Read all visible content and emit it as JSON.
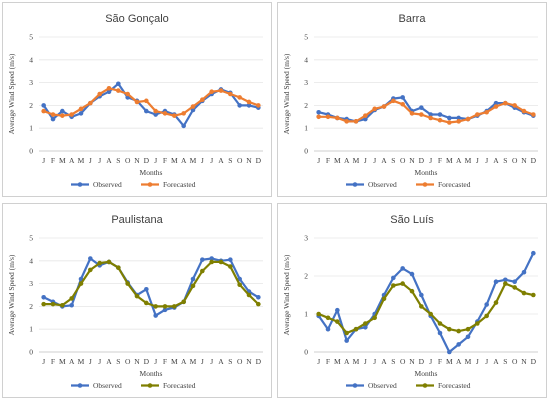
{
  "chart_data": [
    {
      "type": "line",
      "title": "São Gonçalo",
      "xlabel": "Months",
      "ylabel": "Average Wind Speed (m/s)",
      "ylim": [
        0,
        5
      ],
      "yticks": [
        "0",
        "1",
        "2",
        "3",
        "4",
        "5"
      ],
      "categories": [
        "J",
        "F",
        "M",
        "A",
        "M",
        "J",
        "J",
        "A",
        "S",
        "O",
        "N",
        "D",
        "J",
        "F",
        "M",
        "A",
        "M",
        "J",
        "J",
        "A",
        "S",
        "O",
        "N",
        "D"
      ],
      "legend_position": "bottom",
      "series": [
        {
          "name": "Observed",
          "color": "#4472c4",
          "values": [
            2.0,
            1.4,
            1.75,
            1.5,
            1.65,
            2.1,
            2.4,
            2.6,
            2.95,
            2.35,
            2.2,
            1.75,
            1.6,
            1.75,
            1.6,
            1.1,
            1.8,
            2.2,
            2.5,
            2.7,
            2.55,
            2.0,
            2.0,
            1.9
          ]
        },
        {
          "name": "Forecasted",
          "color": "#ed7d31",
          "values": [
            1.75,
            1.6,
            1.55,
            1.6,
            1.85,
            2.1,
            2.5,
            2.75,
            2.65,
            2.5,
            2.15,
            2.2,
            1.75,
            1.65,
            1.55,
            1.65,
            1.95,
            2.25,
            2.6,
            2.65,
            2.5,
            2.35,
            2.15,
            2.0
          ]
        }
      ]
    },
    {
      "type": "line",
      "title": "Barra",
      "xlabel": "Months",
      "ylabel": "Average Wind Speed (m/s)",
      "ylim": [
        0,
        5
      ],
      "yticks": [
        "0",
        "1",
        "2",
        "3",
        "4",
        "5"
      ],
      "categories": [
        "J",
        "F",
        "M",
        "A",
        "M",
        "J",
        "J",
        "A",
        "S",
        "O",
        "N",
        "D",
        "J",
        "F",
        "M",
        "A",
        "M",
        "J",
        "J",
        "A",
        "S",
        "O",
        "N",
        "D"
      ],
      "legend_position": "bottom",
      "series": [
        {
          "name": "Observed",
          "color": "#4472c4",
          "values": [
            1.7,
            1.6,
            1.45,
            1.4,
            1.3,
            1.4,
            1.8,
            1.95,
            2.3,
            2.35,
            1.75,
            1.9,
            1.6,
            1.6,
            1.45,
            1.45,
            1.4,
            1.55,
            1.75,
            2.1,
            2.1,
            1.9,
            1.7,
            1.55
          ]
        },
        {
          "name": "Forecasted",
          "color": "#ed7d31",
          "values": [
            1.5,
            1.5,
            1.45,
            1.3,
            1.3,
            1.55,
            1.85,
            1.95,
            2.2,
            2.05,
            1.65,
            1.6,
            1.45,
            1.35,
            1.25,
            1.3,
            1.4,
            1.6,
            1.7,
            1.95,
            2.1,
            2.0,
            1.75,
            1.6
          ]
        }
      ]
    },
    {
      "type": "line",
      "title": "Paulistana",
      "xlabel": "Months",
      "ylabel": "Average Wind Speed (m/s)",
      "ylim": [
        0,
        5
      ],
      "yticks": [
        "0",
        "1",
        "2",
        "3",
        "4",
        "5"
      ],
      "categories": [
        "J",
        "F",
        "M",
        "A",
        "M",
        "J",
        "J",
        "A",
        "S",
        "O",
        "N",
        "D",
        "J",
        "F",
        "M",
        "A",
        "M",
        "J",
        "J",
        "A",
        "S",
        "O",
        "N",
        "D"
      ],
      "legend_position": "bottom",
      "series": [
        {
          "name": "Observed",
          "color": "#4472c4",
          "values": [
            2.4,
            2.2,
            2.0,
            2.05,
            3.2,
            4.1,
            3.8,
            3.95,
            3.7,
            3.05,
            2.5,
            2.75,
            1.6,
            1.85,
            1.95,
            2.2,
            3.2,
            4.05,
            4.1,
            4.0,
            4.05,
            3.2,
            2.65,
            2.4
          ]
        },
        {
          "name": "Forecasted",
          "color": "#7f7f00",
          "values": [
            2.1,
            2.1,
            2.05,
            2.35,
            3.0,
            3.6,
            3.9,
            3.95,
            3.7,
            3.0,
            2.45,
            2.15,
            2.0,
            2.0,
            2.0,
            2.2,
            2.9,
            3.55,
            3.95,
            3.95,
            3.75,
            2.95,
            2.5,
            2.1
          ]
        }
      ]
    },
    {
      "type": "line",
      "title": "São Luís",
      "xlabel": "Months",
      "ylabel": "Average Wind Speed (m/s)",
      "ylim": [
        0,
        3
      ],
      "yticks": [
        "0",
        "1",
        "2",
        "3"
      ],
      "categories": [
        "J",
        "F",
        "M",
        "A",
        "M",
        "J",
        "J",
        "A",
        "S",
        "O",
        "N",
        "D",
        "J",
        "F",
        "M",
        "A",
        "M",
        "J",
        "J",
        "A",
        "S",
        "O",
        "N",
        "D"
      ],
      "legend_position": "bottom",
      "series": [
        {
          "name": "Observed",
          "color": "#4472c4",
          "values": [
            0.95,
            0.6,
            1.1,
            0.3,
            0.6,
            0.65,
            1.0,
            1.5,
            1.95,
            2.2,
            2.05,
            1.5,
            0.95,
            0.5,
            0.0,
            0.2,
            0.4,
            0.8,
            1.25,
            1.85,
            1.9,
            1.85,
            2.1,
            2.6
          ]
        },
        {
          "name": "Forecasted",
          "color": "#7f7f00",
          "values": [
            1.0,
            0.9,
            0.8,
            0.5,
            0.6,
            0.75,
            0.9,
            1.4,
            1.75,
            1.8,
            1.6,
            1.2,
            1.0,
            0.75,
            0.6,
            0.55,
            0.6,
            0.75,
            0.95,
            1.3,
            1.8,
            1.7,
            1.55,
            1.5
          ]
        }
      ]
    }
  ]
}
